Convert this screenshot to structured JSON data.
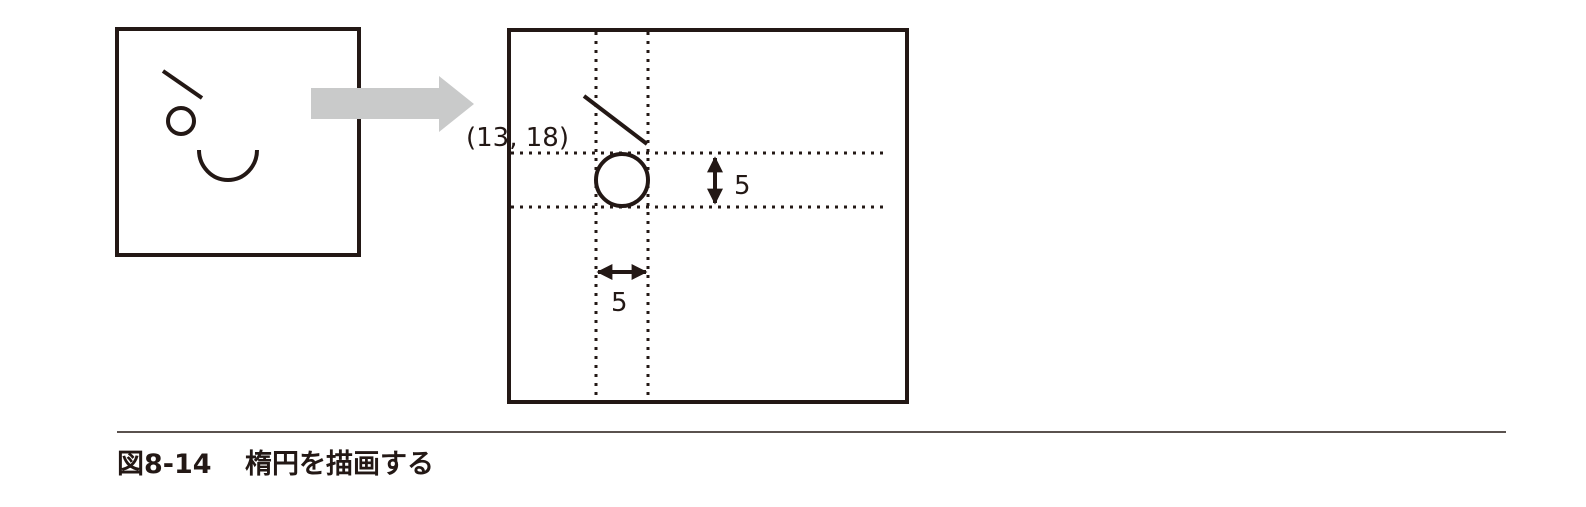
{
  "diagram": {
    "point_label": "(13, 18)",
    "height_label": "5",
    "width_label": "5"
  },
  "caption": {
    "number": "図8-14",
    "text": "楕円を描画する"
  },
  "colors": {
    "ink": "#231815",
    "arrow": "#c9caca"
  }
}
